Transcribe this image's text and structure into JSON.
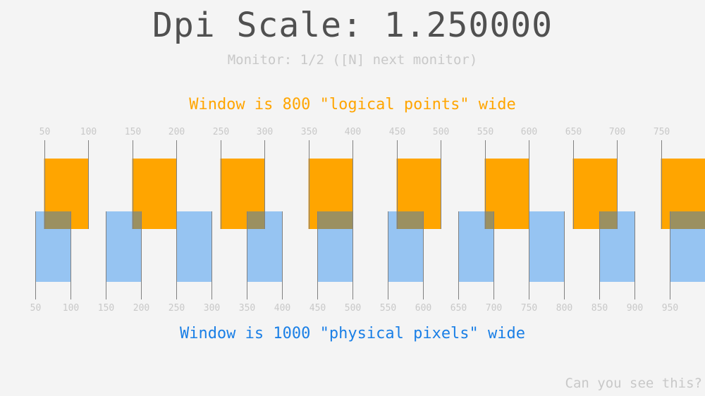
{
  "title": "Dpi Scale: 1.250000",
  "monitor_line": "Monitor: 1/2 ([N] next monitor)",
  "logical_caption": "Window is 800 \"logical points\" wide",
  "physical_caption": "Window is 1000 \"physical pixels\" wide",
  "hint": "Can you see this?",
  "dpi_scale": 1.25,
  "logical_ruler": {
    "width": 800,
    "step": 50,
    "labels": [
      "50",
      "100",
      "150",
      "200",
      "250",
      "300",
      "350",
      "400",
      "450",
      "500",
      "550",
      "600",
      "650",
      "700",
      "750"
    ]
  },
  "physical_ruler": {
    "width": 1000,
    "step": 50,
    "labels": [
      "50",
      "100",
      "150",
      "200",
      "250",
      "300",
      "350",
      "400",
      "450",
      "500",
      "550",
      "600",
      "650",
      "700",
      "750",
      "800",
      "850",
      "900",
      "950"
    ]
  },
  "colors": {
    "logical": "#ffa500",
    "physical": "#96c4f2",
    "overlap": "#9b9060",
    "tick": "#808080",
    "background": "#f4f4f4"
  }
}
